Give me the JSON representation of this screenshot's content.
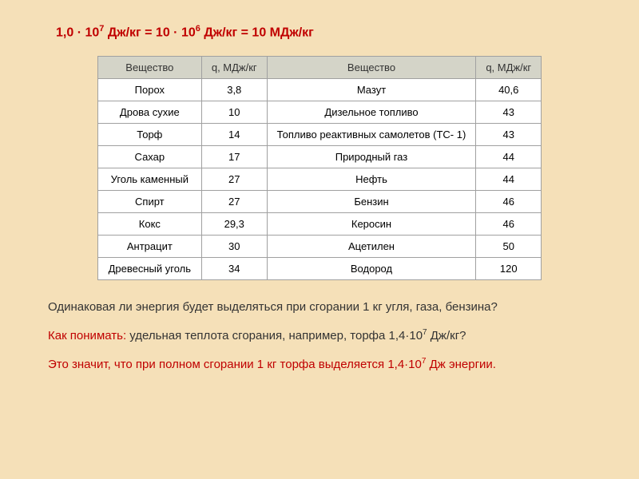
{
  "formula": "1,0 · 10⁷ Дж/кг = 10 · 10⁶ Дж/кг = 10 МДж/кг",
  "table": {
    "headers": {
      "sub_left": "Вещество",
      "q_left": "q, МДж/кг",
      "sub_right": "Вещество",
      "q_right": "q, МДж/кг"
    },
    "rows": [
      {
        "sl": "Порох",
        "ql": "3,8",
        "sr": "Мазут",
        "qr": "40,6"
      },
      {
        "sl": "Дрова сухие",
        "ql": "10",
        "sr": "Дизельное топливо",
        "qr": "43"
      },
      {
        "sl": "Торф",
        "ql": "14",
        "sr": "Топливо реактивных самолетов (ТС- 1)",
        "qr": "43"
      },
      {
        "sl": "Сахар",
        "ql": "17",
        "sr": "Природный газ",
        "qr": "44"
      },
      {
        "sl": "Уголь каменный",
        "ql": "27",
        "sr": "Нефть",
        "qr": "44"
      },
      {
        "sl": "Спирт",
        "ql": "27",
        "sr": "Бензин",
        "qr": "46"
      },
      {
        "sl": "Кокс",
        "ql": "29,3",
        "sr": "Керосин",
        "qr": "46"
      },
      {
        "sl": "Антрацит",
        "ql": "30",
        "sr": "Ацетилен",
        "qr": "50"
      },
      {
        "sl": "Древесный уголь",
        "ql": "34",
        "sr": "Водород",
        "qr": "120"
      }
    ],
    "header_bg": "#d4d4c8",
    "cell_bg": "#ffffff",
    "border_color": "#a0a0a0"
  },
  "question": "Одинаковая ли энергия будет выделяться при сгорании 1 кг угля, газа, бензина?",
  "explain_prefix": "Как понимать:",
  "explain_rest": " удельная теплота сгорания, например, торфа 1,4·10⁷ Дж/кг?",
  "answer": "Это значит, что при полном сгорании 1 кг торфа выделяется 1,4·10⁷ Дж энергии."
}
